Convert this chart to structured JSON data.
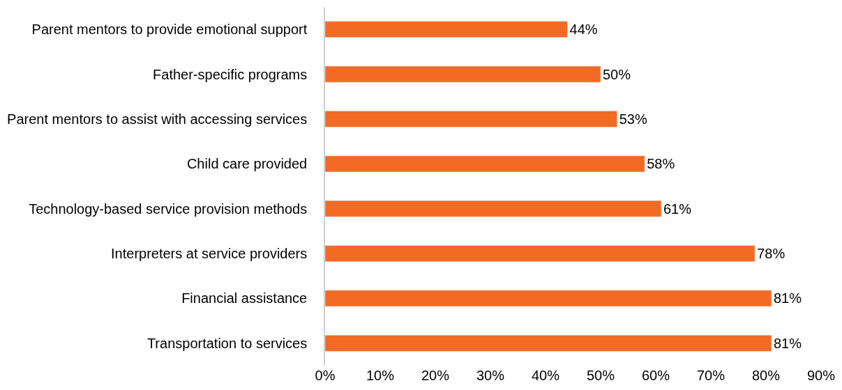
{
  "chart_data": {
    "type": "bar",
    "orientation": "horizontal",
    "categories": [
      "Parent mentors to provide emotional support",
      "Father-specific programs",
      "Parent mentors to assist with accessing services",
      "Child care provided",
      "Technology-based service provision methods",
      "Interpreters at service providers",
      "Financial assistance",
      "Transportation to services"
    ],
    "values": [
      44,
      50,
      53,
      58,
      61,
      78,
      81,
      81
    ],
    "value_labels": [
      "44%",
      "50%",
      "53%",
      "58%",
      "61%",
      "78%",
      "81%",
      "81%"
    ],
    "color": "#f26b26",
    "xlim": [
      0,
      90
    ],
    "xticks": [
      {
        "value": 0,
        "label": "0%"
      },
      {
        "value": 10,
        "label": "10%"
      },
      {
        "value": 20,
        "label": "20%"
      },
      {
        "value": 30,
        "label": "30%"
      },
      {
        "value": 40,
        "label": "40%"
      },
      {
        "value": 50,
        "label": "50%"
      },
      {
        "value": 60,
        "label": "60%"
      },
      {
        "value": 70,
        "label": "70%"
      },
      {
        "value": 80,
        "label": "80%"
      },
      {
        "value": 90,
        "label": "90%"
      }
    ],
    "legend": false
  }
}
